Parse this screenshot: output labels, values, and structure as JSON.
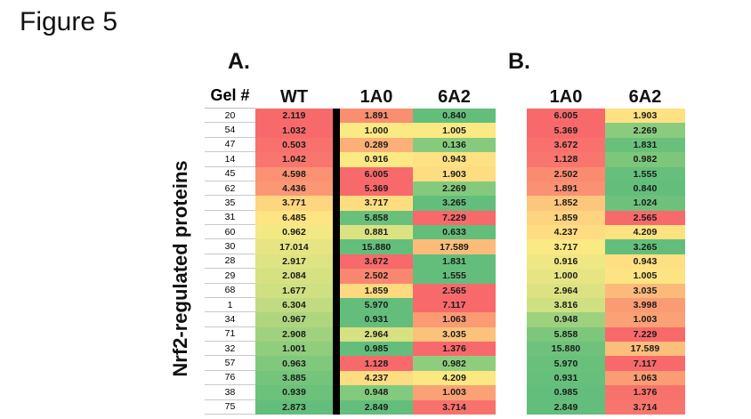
{
  "figure_label": "Figure 5",
  "y_axis_label": "Nrf2-regulated proteins",
  "panel_a_label": "A.",
  "panel_b_label": "B.",
  "colors": {
    "scale_low_green": "#63BE7B",
    "scale_mid_yellow": "#FFEB84",
    "scale_high_red": "#F8696B",
    "column_divider": "#000000",
    "gel_gridline": "#C9C9C9"
  },
  "chart_data": [
    {
      "type": "heatmap",
      "panel": "A.",
      "row_header": "Gel #",
      "columns": [
        "WT",
        "1A0",
        "6A2"
      ],
      "divider_after_column": "WT",
      "colorscale": "red-yellow-green",
      "gel_numbers": [
        "20",
        "54",
        "47",
        "14",
        "45",
        "62",
        "35",
        "31",
        "60",
        "30",
        "28",
        "29",
        "68",
        "1",
        "34",
        "71",
        "32",
        "57",
        "76",
        "38",
        "75"
      ],
      "values": [
        [
          2.119,
          1.891,
          0.84
        ],
        [
          1.032,
          1.0,
          1.005
        ],
        [
          0.503,
          0.289,
          0.136
        ],
        [
          1.042,
          0.916,
          0.943
        ],
        [
          4.598,
          6.005,
          1.903
        ],
        [
          4.436,
          5.369,
          2.269
        ],
        [
          3.771,
          3.717,
          3.265
        ],
        [
          6.485,
          5.858,
          7.229
        ],
        [
          0.962,
          0.881,
          0.633
        ],
        [
          17.014,
          15.88,
          17.589
        ],
        [
          2.917,
          3.672,
          1.831
        ],
        [
          2.084,
          2.502,
          1.555
        ],
        [
          1.677,
          1.859,
          2.565
        ],
        [
          6.304,
          5.97,
          7.117
        ],
        [
          0.967,
          0.931,
          1.063
        ],
        [
          2.908,
          2.964,
          3.035
        ],
        [
          1.001,
          0.985,
          1.376
        ],
        [
          0.963,
          1.128,
          0.982
        ],
        [
          3.885,
          4.237,
          4.209
        ],
        [
          0.939,
          0.948,
          1.003
        ],
        [
          2.873,
          2.849,
          3.714
        ]
      ],
      "cell_colors": [
        [
          "#F8696B",
          "#F98E70",
          "#63BE7B"
        ],
        [
          "#F8696B",
          "#FBE983",
          "#FBE983"
        ],
        [
          "#F8716C",
          "#FBB077",
          "#86CB7D"
        ],
        [
          "#F8766D",
          "#FBE983",
          "#FEE182"
        ],
        [
          "#FA9173",
          "#F8696B",
          "#FEDC81"
        ],
        [
          "#FA9876",
          "#F8696B",
          "#84CA7D"
        ],
        [
          "#FDD67F",
          "#FEDD81",
          "#63BE7B"
        ],
        [
          "#FEE482",
          "#69C07B",
          "#F8696B"
        ],
        [
          "#F2E884",
          "#DCE282",
          "#63BE7B"
        ],
        [
          "#E7E583",
          "#63BE7B",
          "#FBBC7A"
        ],
        [
          "#DEE383",
          "#F8696B",
          "#63BE7B"
        ],
        [
          "#D6E182",
          "#F98770",
          "#63BE7B"
        ],
        [
          "#CEE081",
          "#FED980",
          "#F8696B"
        ],
        [
          "#C0DB81",
          "#63BE7B",
          "#F8696B"
        ],
        [
          "#AFD67F",
          "#63BE7B",
          "#FA9B74"
        ],
        [
          "#A0D17E",
          "#D8E182",
          "#FBC27B"
        ],
        [
          "#90CD7D",
          "#63BE7B",
          "#F8696B"
        ],
        [
          "#80C87C",
          "#F8696B",
          "#8FCD7E"
        ],
        [
          "#75C47B",
          "#FEDC81",
          "#FCE883"
        ],
        [
          "#6CC17B",
          "#82CA7D",
          "#FAA175"
        ],
        [
          "#63BE7B",
          "#63BE7B",
          "#F8726C"
        ]
      ]
    },
    {
      "type": "heatmap",
      "panel": "B.",
      "columns": [
        "1A0",
        "6A2"
      ],
      "colorscale": "red-yellow-green",
      "values": [
        [
          6.005,
          1.903
        ],
        [
          5.369,
          2.269
        ],
        [
          3.672,
          1.831
        ],
        [
          1.128,
          0.982
        ],
        [
          2.502,
          1.555
        ],
        [
          1.891,
          0.84
        ],
        [
          1.852,
          1.024
        ],
        [
          1.859,
          2.565
        ],
        [
          4.237,
          4.209
        ],
        [
          3.717,
          3.265
        ],
        [
          0.916,
          0.943
        ],
        [
          1.0,
          1.005
        ],
        [
          2.964,
          3.035
        ],
        [
          3.816,
          3.998
        ],
        [
          0.948,
          1.003
        ],
        [
          5.858,
          7.229
        ],
        [
          15.88,
          17.589
        ],
        [
          5.97,
          7.117
        ],
        [
          0.931,
          1.063
        ],
        [
          0.985,
          1.376
        ],
        [
          2.849,
          3.714
        ]
      ],
      "cell_colors": [
        [
          "#F8696B",
          "#FDE182"
        ],
        [
          "#F8696B",
          "#8ACB7D"
        ],
        [
          "#F8716C",
          "#69C07B"
        ],
        [
          "#F8766D",
          "#7CC77C"
        ],
        [
          "#FA8B71",
          "#66BF7B"
        ],
        [
          "#FA9173",
          "#63BE7B"
        ],
        [
          "#FDC67D",
          "#6DC17B"
        ],
        [
          "#FED480",
          "#F8696B"
        ],
        [
          "#FEDC81",
          "#FDE282"
        ],
        [
          "#FBE983",
          "#63BE7B"
        ],
        [
          "#EFE783",
          "#FEE082"
        ],
        [
          "#E7E583",
          "#FDE482"
        ],
        [
          "#DCE282",
          "#FBB97A"
        ],
        [
          "#CFE081",
          "#FA9B74"
        ],
        [
          "#9ED17E",
          "#FAA175"
        ],
        [
          "#7CC77C",
          "#F8696B"
        ],
        [
          "#6FC27B",
          "#FBBE7B"
        ],
        [
          "#68C07B",
          "#F8696B"
        ],
        [
          "#66BF7B",
          "#FA9D74"
        ],
        [
          "#63BE7B",
          "#F8726C"
        ],
        [
          "#63BE7B",
          "#F8756D"
        ]
      ]
    }
  ]
}
